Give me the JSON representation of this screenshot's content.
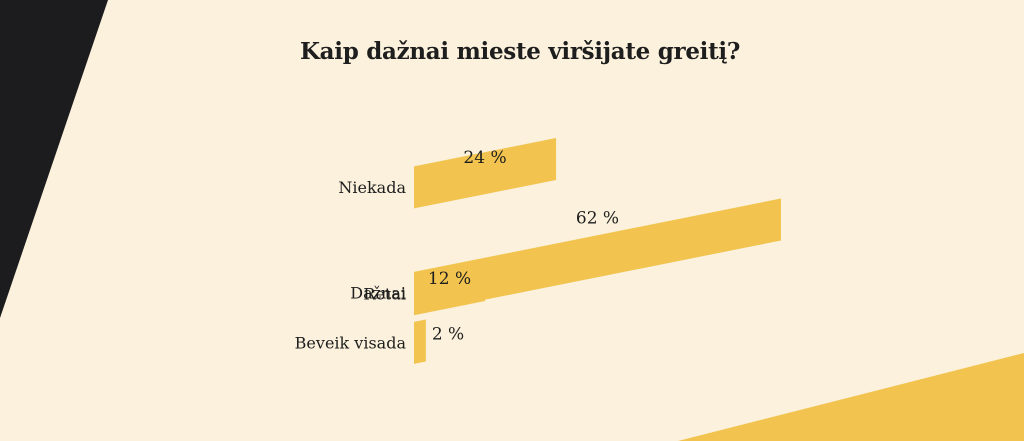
{
  "colors": {
    "background": "#fbf1dc",
    "bar": "#f2c44f",
    "dark": "#1c1c1e",
    "text": "#1e1e1e"
  },
  "chart_data": {
    "type": "bar",
    "orientation": "horizontal",
    "title": "Kaip dažnai mieste viršijate greitį?",
    "categories": [
      "Niekada",
      "Dažnai",
      "Retai",
      "Beveik visada"
    ],
    "values": [
      24,
      62,
      12,
      2
    ],
    "value_labels": [
      "24 %",
      "62 %",
      "12 %",
      "2 %"
    ],
    "unit": "%",
    "xlim": [
      0,
      62
    ],
    "grid": false,
    "legend": "none"
  }
}
